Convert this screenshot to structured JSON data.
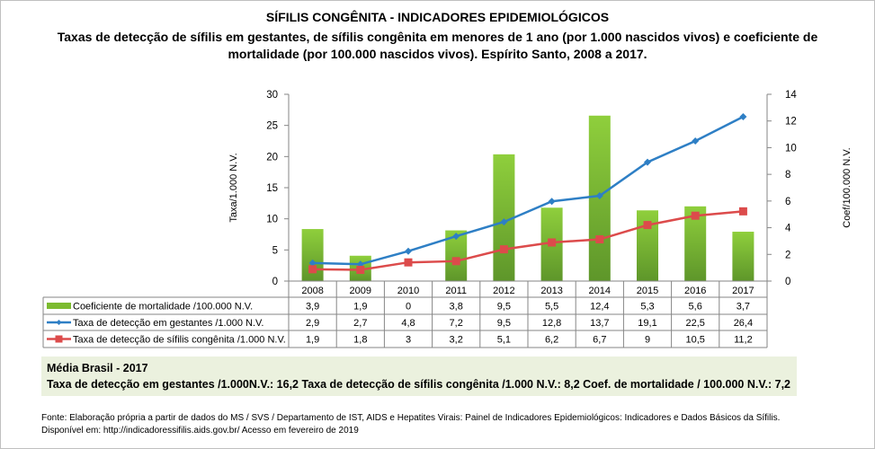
{
  "title": "SÍFILIS CONGÊNITA - INDICADORES EPIDEMIOLÓGICOS",
  "subtitle": "Taxas de detecção de sífilis em gestantes, de sífilis congênita em menores de 1 ano (por 1.000 nascidos vivos) e coeficiente de mortalidade (por 100.000 nascidos vivos). Espírito Santo, 2008 a 2017.",
  "chart_data": {
    "type": "bar+line",
    "categories": [
      "2008",
      "2009",
      "2010",
      "2011",
      "2012",
      "2013",
      "2014",
      "2015",
      "2016",
      "2017"
    ],
    "ylabel_left": "Taxa/1.000 N.V.",
    "ylabel_right": "Coef/100.000 N.V.",
    "ylim_left": [
      0,
      30
    ],
    "yticks_left": [
      "0",
      "5",
      "10",
      "15",
      "20",
      "25",
      "30"
    ],
    "ylim_right": [
      0,
      14
    ],
    "yticks_right": [
      "0",
      "2",
      "4",
      "6",
      "8",
      "10",
      "12",
      "14"
    ],
    "grid": false,
    "legend": "data-table",
    "series": [
      {
        "name": "Coeficiente de mortalidade /100.000 N.V.",
        "kind": "bar",
        "axis": "right",
        "color": "#7cbb2f",
        "values": [
          3.9,
          1.9,
          0,
          3.8,
          9.5,
          5.5,
          12.4,
          5.3,
          5.6,
          3.7
        ],
        "labels": [
          "3,9",
          "1,9",
          "0",
          "3,8",
          "9,5",
          "5,5",
          "12,4",
          "5,3",
          "5,6",
          "3,7"
        ]
      },
      {
        "name": "Taxa de detecção em gestantes /1.000 N.V.",
        "kind": "line",
        "marker": "diamond",
        "axis": "left",
        "color": "#2e7fc5",
        "values": [
          2.9,
          2.7,
          4.8,
          7.2,
          9.5,
          12.8,
          13.7,
          19.1,
          22.5,
          26.4
        ],
        "labels": [
          "2,9",
          "2,7",
          "4,8",
          "7,2",
          "9,5",
          "12,8",
          "13,7",
          "19,1",
          "22,5",
          "26,4"
        ]
      },
      {
        "name": "Taxa de detecção de sífilis congênita /1.000 N.V.",
        "kind": "line",
        "marker": "square",
        "axis": "left",
        "color": "#dc4b4b",
        "values": [
          1.9,
          1.8,
          3,
          3.2,
          5.1,
          6.2,
          6.7,
          9,
          10.5,
          11.2
        ],
        "labels": [
          "1,9",
          "1,8",
          "3",
          "3,2",
          "5,1",
          "6,2",
          "6,7",
          "9",
          "10,5",
          "11,2"
        ]
      }
    ]
  },
  "average": {
    "heading": "Média Brasil  - 2017",
    "line": "Taxa  de detecção em gestantes /1.000N.V.: 16,2   Taxa  de detecção  de sífilis congênita /1.000 N.V.: 8,2    Coef. de mortalidade  / 100.000 N.V.: 7,2"
  },
  "source": {
    "line1": "Fonte: Elaboração própria a partir de dados do MS / SVS / Departamento de IST, AIDS e Hepatites Virais:  Painel de Indicadores Epidemiológicos: Indicadores e Dados Básicos da Sífilis.",
    "line2": "Disponível em: http://indicadoressifilis.aids.gov.br/    Acesso em fevereiro de 2019"
  }
}
